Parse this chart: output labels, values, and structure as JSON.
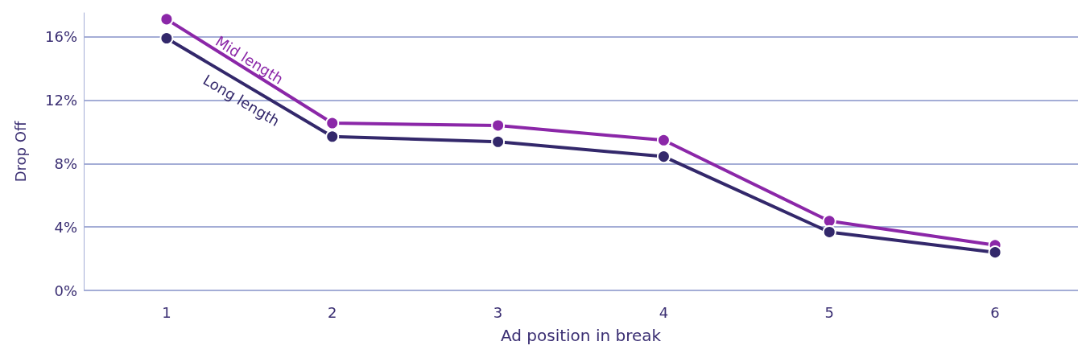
{
  "chart_data": {
    "type": "line",
    "xlabel": "Ad position in break",
    "ylabel": "Drop Off",
    "categories": [
      "1",
      "2",
      "3",
      "4",
      "5",
      "6"
    ],
    "series": [
      {
        "name": "Mid length",
        "color": "#8b27a8",
        "values": [
          17.1,
          10.55,
          10.4,
          9.47,
          4.37,
          2.85
        ]
      },
      {
        "name": "Long length",
        "color": "#33286b",
        "values": [
          15.9,
          9.7,
          9.37,
          8.44,
          3.68,
          2.4
        ]
      }
    ],
    "ylim": [
      0,
      17.5
    ],
    "yticks": [
      {
        "value": 0,
        "label": "0%"
      },
      {
        "value": 4,
        "label": "4%"
      },
      {
        "value": 8,
        "label": "8%"
      },
      {
        "value": 12,
        "label": "12%"
      },
      {
        "value": 16,
        "label": "16%"
      }
    ],
    "grid": "y",
    "legend": false,
    "marker": "circle",
    "line_style": "solid"
  }
}
